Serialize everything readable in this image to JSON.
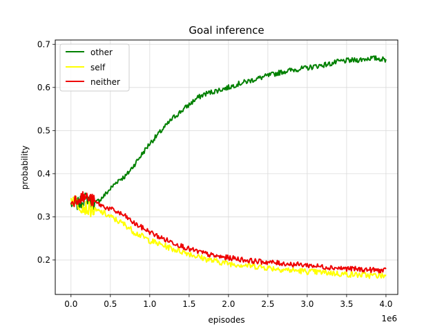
{
  "chart_data": {
    "type": "line",
    "title": "Goal inference",
    "xlabel": "episodes",
    "ylabel": "probability",
    "x_offset_label": "1e6",
    "xlim": [
      -0.2,
      4.15
    ],
    "ylim": [
      0.12,
      0.71
    ],
    "xticks": [
      0.0,
      0.5,
      1.0,
      1.5,
      2.0,
      2.5,
      3.0,
      3.5,
      4.0
    ],
    "xtick_labels": [
      "0.0",
      "0.5",
      "1.0",
      "1.5",
      "2.0",
      "2.5",
      "3.0",
      "3.5",
      "4.0"
    ],
    "yticks": [
      0.2,
      0.3,
      0.4,
      0.5,
      0.6,
      0.7
    ],
    "ytick_labels": [
      "0.2",
      "0.3",
      "0.4",
      "0.5",
      "0.6",
      "0.7"
    ],
    "grid": true,
    "legend_position": "top-left",
    "x": [
      0.0,
      0.1,
      0.2,
      0.3,
      0.4,
      0.5,
      0.6,
      0.7,
      0.8,
      0.9,
      1.0,
      1.1,
      1.2,
      1.3,
      1.4,
      1.5,
      1.6,
      1.7,
      1.8,
      1.9,
      2.0,
      2.1,
      2.2,
      2.3,
      2.4,
      2.5,
      2.6,
      2.7,
      2.8,
      2.9,
      3.0,
      3.1,
      3.2,
      3.3,
      3.4,
      3.5,
      3.6,
      3.7,
      3.8,
      3.9,
      4.0
    ],
    "series": [
      {
        "name": "other",
        "color": "#008000",
        "values": [
          0.33,
          0.33,
          0.345,
          0.33,
          0.345,
          0.365,
          0.385,
          0.395,
          0.42,
          0.445,
          0.47,
          0.49,
          0.51,
          0.53,
          0.545,
          0.56,
          0.575,
          0.585,
          0.59,
          0.595,
          0.6,
          0.607,
          0.612,
          0.617,
          0.622,
          0.627,
          0.632,
          0.637,
          0.64,
          0.643,
          0.645,
          0.649,
          0.652,
          0.655,
          0.66,
          0.662,
          0.663,
          0.665,
          0.668,
          0.667,
          0.664
        ]
      },
      {
        "name": "self",
        "color": "#ffff00",
        "values": [
          0.345,
          0.33,
          0.32,
          0.315,
          0.31,
          0.3,
          0.29,
          0.28,
          0.265,
          0.255,
          0.245,
          0.238,
          0.232,
          0.225,
          0.22,
          0.215,
          0.208,
          0.203,
          0.198,
          0.195,
          0.192,
          0.19,
          0.188,
          0.186,
          0.184,
          0.182,
          0.18,
          0.178,
          0.176,
          0.175,
          0.173,
          0.172,
          0.171,
          0.17,
          0.168,
          0.167,
          0.166,
          0.165,
          0.164,
          0.164,
          0.163
        ]
      },
      {
        "name": "neither",
        "color": "#ee0000",
        "values": [
          0.335,
          0.345,
          0.345,
          0.335,
          0.325,
          0.318,
          0.31,
          0.3,
          0.285,
          0.275,
          0.265,
          0.255,
          0.247,
          0.24,
          0.233,
          0.225,
          0.22,
          0.215,
          0.21,
          0.207,
          0.205,
          0.203,
          0.2,
          0.198,
          0.196,
          0.195,
          0.193,
          0.192,
          0.19,
          0.189,
          0.188,
          0.186,
          0.184,
          0.183,
          0.181,
          0.18,
          0.179,
          0.178,
          0.177,
          0.176,
          0.175
        ]
      }
    ]
  }
}
